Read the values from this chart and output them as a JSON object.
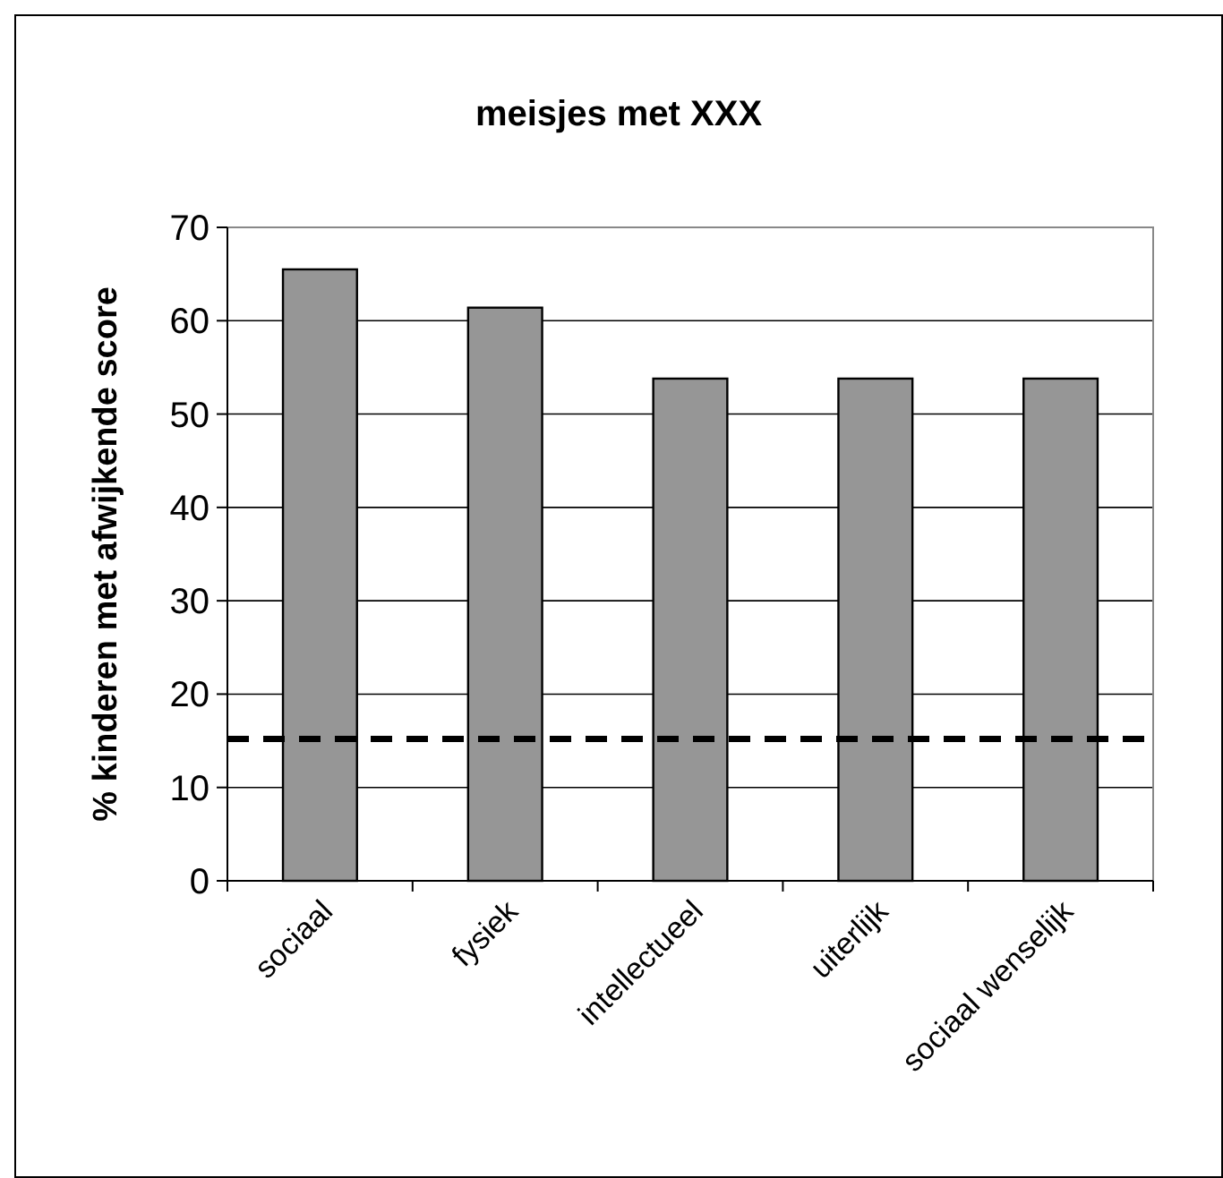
{
  "chart_data": {
    "type": "bar",
    "title": "meisjes met XXX",
    "ylabel": "% kinderen met afwijkende score",
    "categories": [
      "sociaal",
      "fysiek",
      "intellectueel",
      "uiterlijk",
      "sociaal wenselijk"
    ],
    "values": [
      65.5,
      61.4,
      53.8,
      53.8,
      53.8
    ],
    "color": "#969696",
    "ylim": [
      0,
      70
    ],
    "yticks": [
      0,
      10,
      20,
      30,
      40,
      50,
      60,
      70
    ],
    "grid": "y",
    "ref_lines": [
      {
        "axis": "y",
        "value": 15.2,
        "color": "#000000",
        "line_style": "dashed"
      }
    ]
  }
}
